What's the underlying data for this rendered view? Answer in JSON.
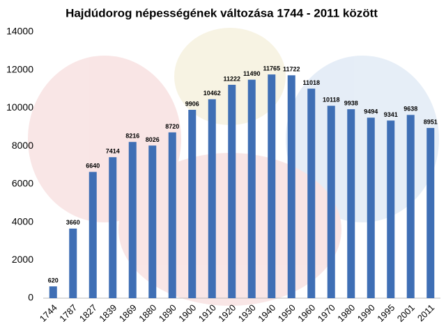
{
  "chart_data": {
    "type": "bar",
    "title": "Hajdúdorog népességének változása 1744 - 2011 között",
    "categories": [
      "1744",
      "1787",
      "1827",
      "1839",
      "1869",
      "1880",
      "1890",
      "1900",
      "1910",
      "1920",
      "1930",
      "1940",
      "1950",
      "1960",
      "1970",
      "1980",
      "1990",
      "1995",
      "2001",
      "2011"
    ],
    "values": [
      620,
      3660,
      6640,
      7414,
      8216,
      8026,
      8720,
      9906,
      10462,
      11222,
      11490,
      11765,
      11722,
      11018,
      10118,
      9938,
      9494,
      9341,
      9638,
      8951
    ],
    "color": "#3f6fb5",
    "ylim": [
      0,
      14000
    ],
    "yticks": [
      0,
      2000,
      4000,
      6000,
      8000,
      10000,
      12000,
      14000
    ],
    "grid": false
  }
}
